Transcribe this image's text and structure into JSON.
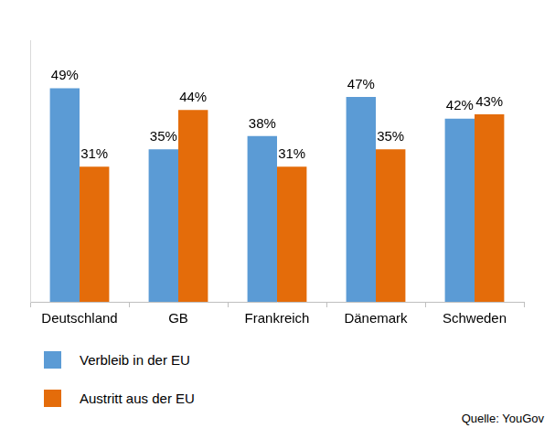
{
  "chart_data": {
    "type": "bar",
    "categories": [
      "Deutschland",
      "GB",
      "Frankreich",
      "Dänemark",
      "Schweden"
    ],
    "series": [
      {
        "name": "Verbleib in der EU",
        "color": "#5b9bd5",
        "values": [
          49,
          35,
          38,
          47,
          42
        ],
        "value_labels": [
          "49%",
          "35%",
          "38%",
          "47%",
          "42%"
        ]
      },
      {
        "name": "Austritt aus der EU",
        "color": "#e46c0a",
        "values": [
          31,
          44,
          31,
          35,
          43
        ],
        "value_labels": [
          "31%",
          "44%",
          "31%",
          "35%",
          "43%"
        ]
      }
    ],
    "ylim": [
      0,
      60
    ],
    "grid": false,
    "legend": "bottom-left",
    "data_labels": true,
    "tick_labels": "x",
    "annotations": [
      "Quelle: YouGov"
    ]
  }
}
